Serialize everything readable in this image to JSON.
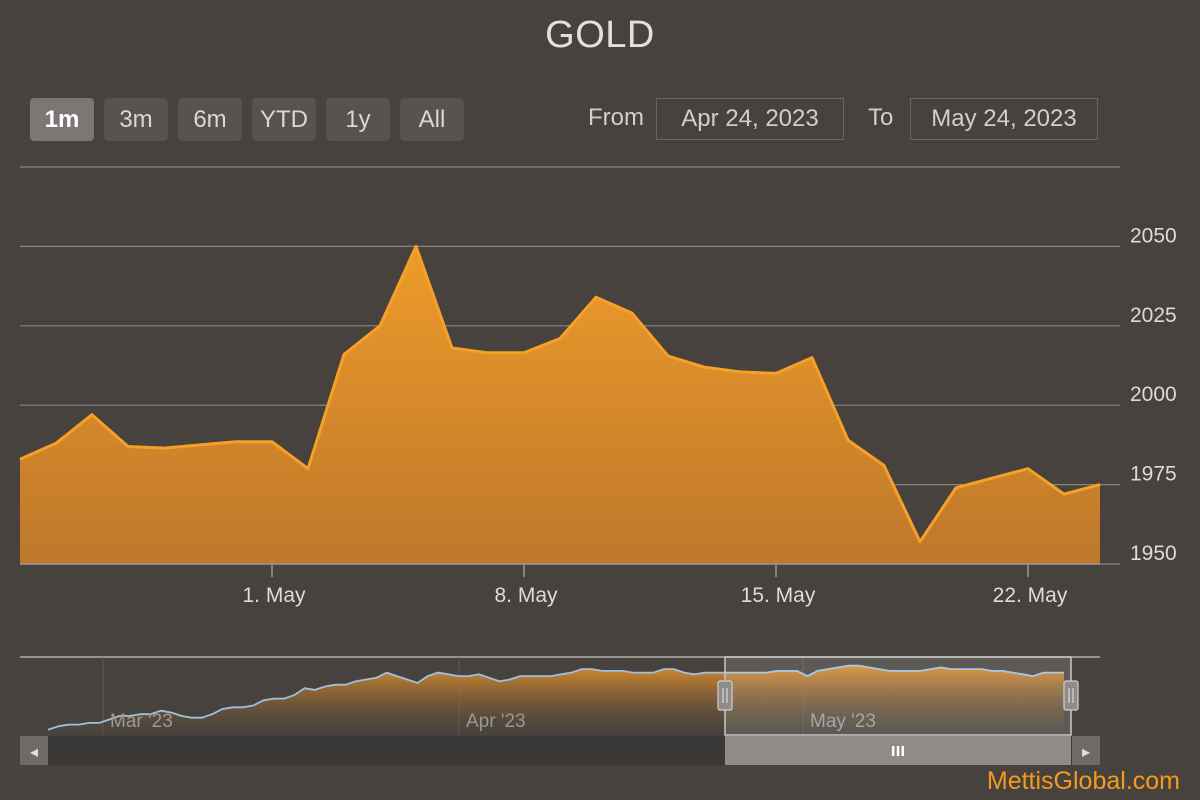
{
  "title": "GOLD",
  "range_selector": {
    "buttons": [
      {
        "label": "1m",
        "active": true
      },
      {
        "label": "3m",
        "active": false
      },
      {
        "label": "6m",
        "active": false
      },
      {
        "label": "YTD",
        "active": false
      },
      {
        "label": "1y",
        "active": false
      },
      {
        "label": "All",
        "active": false
      }
    ],
    "from_label": "From",
    "from_value": "Apr 24, 2023",
    "to_label": "To",
    "to_value": "May 24, 2023"
  },
  "colors": {
    "background": "#47423e",
    "accent": "#f7a028",
    "navigator_line": "#9fc1e0"
  },
  "chart_data": {
    "type": "area",
    "title": "GOLD",
    "x_axis": {
      "ticks": [
        "1. May",
        "8. May",
        "15. May",
        "22. May"
      ],
      "tick_dates": [
        "2023-05-01",
        "2023-05-08",
        "2023-05-15",
        "2023-05-22"
      ],
      "range": [
        "2023-04-24",
        "2023-05-24"
      ]
    },
    "y_axis": {
      "ticks": [
        "1950",
        "1975",
        "2000",
        "2025",
        "2050"
      ],
      "range": [
        1950,
        2075
      ],
      "position": "right",
      "grid": true
    },
    "series": [
      {
        "x": [
          "2023-04-24",
          "2023-04-25",
          "2023-04-26",
          "2023-04-27",
          "2023-04-28",
          "2023-04-29",
          "2023-04-30",
          "2023-05-01",
          "2023-05-02",
          "2023-05-03",
          "2023-05-04",
          "2023-05-05",
          "2023-05-06",
          "2023-05-07",
          "2023-05-08",
          "2023-05-09",
          "2023-05-10",
          "2023-05-11",
          "2023-05-12",
          "2023-05-13",
          "2023-05-14",
          "2023-05-15",
          "2023-05-16",
          "2023-05-17",
          "2023-05-18",
          "2023-05-19",
          "2023-05-20",
          "2023-05-21",
          "2023-05-22",
          "2023-05-23",
          "2023-05-24"
        ],
        "values": [
          1983,
          1988,
          1997,
          1987,
          1986.5,
          1987.5,
          1988.5,
          1988.5,
          1980,
          2016,
          2025,
          2050,
          2018,
          2016.5,
          2016.5,
          2021,
          2034,
          2029,
          2015.5,
          2012,
          2010.5,
          2010,
          2015,
          1989,
          1981,
          1957,
          1974,
          1977,
          1980,
          1972,
          1975
        ]
      }
    ],
    "navigator": {
      "labels": [
        "Mar '23",
        "Apr '23",
        "May '23"
      ],
      "values": [
        2093,
        2095,
        2096,
        2096,
        2097,
        2097,
        2099,
        2101,
        2101,
        2102,
        2102,
        2104,
        2103,
        2101,
        2100,
        2100,
        2102,
        2105,
        2106,
        2106,
        2107,
        2110,
        2111,
        2111,
        2113,
        2117,
        2116,
        2118,
        2119,
        2119,
        2121,
        2122,
        2123,
        2126,
        2124,
        2122,
        2120,
        2124,
        2126,
        2125,
        2124,
        2124,
        2125,
        2123,
        2121,
        2122,
        2124,
        2124,
        2124,
        2124,
        2125,
        2126,
        2128,
        2128,
        2127,
        2127,
        2127,
        2126,
        2126,
        2126,
        2128,
        2128,
        2126,
        2125,
        2126,
        2126,
        2126,
        2126,
        2126,
        2126,
        2126,
        2127,
        2127,
        2127,
        2124,
        2127,
        2128,
        2129,
        2130,
        2130,
        2129,
        2128,
        2127,
        2127,
        2127,
        2127,
        2128,
        2129,
        2128,
        2128,
        2128,
        2128,
        2127,
        2127,
        2126,
        2125,
        2124,
        2126,
        2126,
        2126
      ],
      "ylim": [
        2090,
        2135
      ]
    }
  },
  "scrollbar": {
    "left_arrow": "◂",
    "right_arrow": "▸",
    "grip": "III"
  },
  "watermark": "MettisGlobal.com"
}
